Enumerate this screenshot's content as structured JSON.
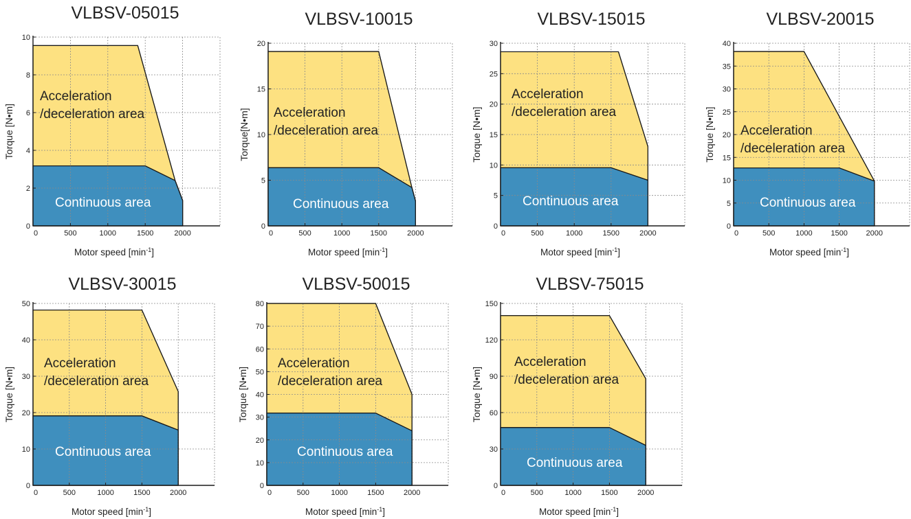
{
  "colors": {
    "accel": "#fde181",
    "cont": "#3f8fbe",
    "line": "#1a1a1a",
    "grid": "#8a8a8a",
    "contText": "#ffffff",
    "accelText": "#222222"
  },
  "common": {
    "xlabel": "Motor speed [min",
    "xlabel_sup": "-1",
    "xlabel_end": "]",
    "accel_line1": "Acceleration",
    "accel_line2": "/deceleration area",
    "cont_label": "Continuous area",
    "x_ticks": [
      0,
      500,
      1000,
      1500,
      2000
    ],
    "xlim": [
      0,
      2500
    ]
  },
  "chart_data": [
    {
      "type": "area",
      "title": "VLBSV-05015",
      "ylabel": "Torque [N•m]",
      "ylim": [
        0,
        10
      ],
      "y_ticks": [
        0,
        2,
        4,
        6,
        8,
        10
      ],
      "accel_boundary": [
        [
          0,
          9.55
        ],
        [
          1400,
          9.55
        ],
        [
          1900,
          2.4
        ],
        [
          2000,
          1.35
        ]
      ],
      "cont_boundary": [
        [
          0,
          3.18
        ],
        [
          1500,
          3.18
        ],
        [
          1900,
          2.4
        ],
        [
          2000,
          1.35
        ]
      ]
    },
    {
      "type": "area",
      "title": "VLBSV-10015",
      "ylabel": "Torque[N•m]",
      "ylim": [
        0,
        20
      ],
      "y_ticks": [
        0,
        5,
        10,
        15,
        20
      ],
      "accel_boundary": [
        [
          0,
          19.1
        ],
        [
          1500,
          19.1
        ],
        [
          1950,
          4.2
        ],
        [
          2000,
          2.7
        ]
      ],
      "cont_boundary": [
        [
          0,
          6.37
        ],
        [
          1500,
          6.37
        ],
        [
          1950,
          4.2
        ],
        [
          2000,
          2.7
        ]
      ]
    },
    {
      "type": "area",
      "title": "VLBSV-15015",
      "ylabel": "Torque [N•m]",
      "ylim": [
        0,
        30
      ],
      "y_ticks": [
        0,
        5,
        10,
        15,
        20,
        25,
        30
      ],
      "accel_boundary": [
        [
          0,
          28.6
        ],
        [
          1600,
          28.6
        ],
        [
          2000,
          13.0
        ]
      ],
      "cont_boundary": [
        [
          0,
          9.55
        ],
        [
          1500,
          9.55
        ],
        [
          2000,
          7.5
        ]
      ]
    },
    {
      "type": "area",
      "title": "VLBSV-20015",
      "ylabel": "Torque [N•m]",
      "ylim": [
        0,
        40
      ],
      "y_ticks": [
        0,
        5,
        10,
        15,
        20,
        25,
        30,
        35,
        40
      ],
      "accel_boundary": [
        [
          0,
          38.2
        ],
        [
          1000,
          38.2
        ],
        [
          2000,
          9.8
        ]
      ],
      "cont_boundary": [
        [
          0,
          12.7
        ],
        [
          1500,
          12.7
        ],
        [
          2000,
          9.8
        ]
      ]
    },
    {
      "type": "area",
      "title": "VLBSV-30015",
      "ylabel": "Torque [N•m]",
      "ylim": [
        0,
        50
      ],
      "y_ticks": [
        0,
        10,
        20,
        30,
        40,
        50
      ],
      "accel_boundary": [
        [
          0,
          48.2
        ],
        [
          1500,
          48.2
        ],
        [
          2000,
          25.8
        ]
      ],
      "cont_boundary": [
        [
          0,
          19.1
        ],
        [
          1500,
          19.1
        ],
        [
          2000,
          15.2
        ]
      ]
    },
    {
      "type": "area",
      "title": "VLBSV-50015",
      "ylabel": "Torque [N•m]",
      "ylim": [
        0,
        80
      ],
      "y_ticks": [
        0,
        10,
        20,
        30,
        40,
        50,
        60,
        70,
        80
      ],
      "accel_boundary": [
        [
          0,
          80
        ],
        [
          1500,
          80
        ],
        [
          2000,
          40
        ]
      ],
      "cont_boundary": [
        [
          0,
          31.8
        ],
        [
          1500,
          31.8
        ],
        [
          2000,
          24
        ]
      ]
    },
    {
      "type": "area",
      "title": "VLBSV-75015",
      "ylabel": "Torque [N•m]",
      "ylim": [
        0,
        150
      ],
      "y_ticks": [
        0,
        30,
        60,
        90,
        120,
        150
      ],
      "accel_boundary": [
        [
          0,
          140
        ],
        [
          1500,
          140
        ],
        [
          2000,
          88
        ]
      ],
      "cont_boundary": [
        [
          0,
          47.7
        ],
        [
          1500,
          47.7
        ],
        [
          2000,
          33
        ]
      ]
    }
  ]
}
